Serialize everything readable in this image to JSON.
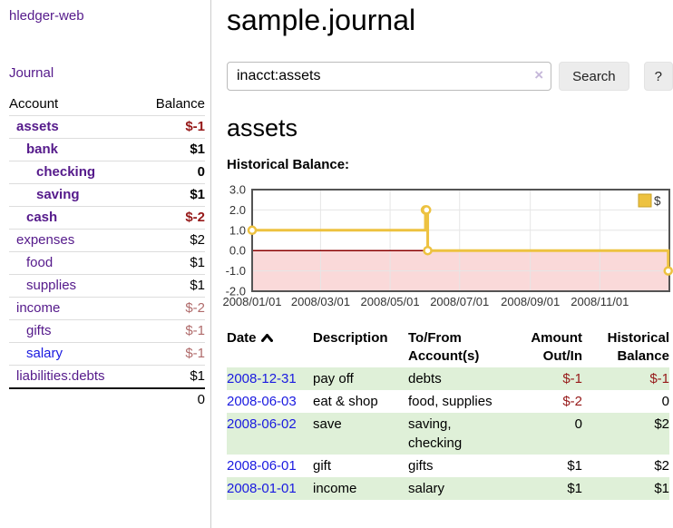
{
  "brand": "hledger-web",
  "nav": {
    "journal": "Journal"
  },
  "sidebar_accounts": {
    "header": {
      "account": "Account",
      "balance": "Balance"
    },
    "rows": [
      {
        "account": "assets",
        "balance": "$-1",
        "depth": 1,
        "current": true,
        "balance_class": "neg"
      },
      {
        "account": "bank",
        "balance": "$1",
        "depth": 2,
        "current": true,
        "balance_class": "pos"
      },
      {
        "account": "checking",
        "balance": "0",
        "depth": 3,
        "current": true,
        "balance_class": "pos"
      },
      {
        "account": "saving",
        "balance": "$1",
        "depth": 3,
        "current": true,
        "balance_class": "pos"
      },
      {
        "account": "cash",
        "balance": "$-2",
        "depth": 2,
        "current": true,
        "balance_class": "neg"
      },
      {
        "account": "expenses",
        "balance": "$2",
        "depth": 1,
        "current": false,
        "balance_class": "pos"
      },
      {
        "account": "food",
        "balance": "$1",
        "depth": 2,
        "current": false,
        "balance_class": "pos"
      },
      {
        "account": "supplies",
        "balance": "$1",
        "depth": 2,
        "current": false,
        "balance_class": "pos"
      },
      {
        "account": "income",
        "balance": "$-2",
        "depth": 1,
        "current": false,
        "balance_class": "neg-muted"
      },
      {
        "account": "gifts",
        "balance": "$-1",
        "depth": 2,
        "current": false,
        "balance_class": "neg-muted"
      },
      {
        "account": "salary",
        "balance": "$-1",
        "depth": 2,
        "current": false,
        "balance_class": "neg-muted",
        "link_class": "blue"
      },
      {
        "account": "liabilities:debts",
        "balance": "$1",
        "depth": 1,
        "current": false,
        "balance_class": "pos"
      }
    ],
    "total": "0"
  },
  "main": {
    "title": "sample.journal",
    "search": {
      "value": "inacct:assets",
      "clear": "×",
      "search_button": "Search",
      "help_button": "?"
    },
    "account_heading": "assets",
    "chart_heading": "Historical Balance:"
  },
  "chart_data": {
    "type": "line",
    "style": "step",
    "title": "Historical Balance:",
    "series": [
      {
        "name": "$",
        "color": "#edc240",
        "points": [
          {
            "date": "2008-01-01",
            "value": 1
          },
          {
            "date": "2008-06-01",
            "value": 2
          },
          {
            "date": "2008-06-02",
            "value": 2
          },
          {
            "date": "2008-06-03",
            "value": 0
          },
          {
            "date": "2008-12-31",
            "value": -1
          }
        ]
      }
    ],
    "xlim": [
      "2008-01-01",
      "2009-01-01"
    ],
    "ylim": [
      -2,
      3
    ],
    "y_ticks": [
      {
        "value": 3,
        "label": "3.0"
      },
      {
        "value": 2,
        "label": "2.0"
      },
      {
        "value": 1,
        "label": "1.0"
      },
      {
        "value": 0,
        "label": "0.0"
      },
      {
        "value": -1,
        "label": "-1.0"
      },
      {
        "value": -2,
        "label": "-2.0"
      }
    ],
    "x_ticks": [
      {
        "date": "2008-01-01",
        "label": "2008/01/01"
      },
      {
        "date": "2008-03-01",
        "label": "2008/03/01"
      },
      {
        "date": "2008-05-01",
        "label": "2008/05/01"
      },
      {
        "date": "2008-07-01",
        "label": "2008/07/01"
      },
      {
        "date": "2008-09-01",
        "label": "2008/09/01"
      },
      {
        "date": "2008-11-01",
        "label": "2008/11/01"
      }
    ],
    "legend": {
      "label": "$",
      "position": "top-right"
    },
    "grid": true,
    "border_color": "#545454",
    "grid_color": "#e6e6e6",
    "zero_line_color": "#8b0000",
    "negative_region_color": "#fad9d9",
    "marker_fill": "#ffffff"
  },
  "register": {
    "columns": [
      {
        "label": "Date",
        "sort": "ascending",
        "align": "left"
      },
      {
        "label": "Description",
        "align": "left"
      },
      {
        "label": "To/From Account(s)",
        "align": "left"
      },
      {
        "label": "Amount Out/In",
        "align": "right"
      },
      {
        "label": "Historical Balance",
        "align": "right"
      }
    ],
    "rows": [
      {
        "date": "2008-12-31",
        "description": "pay off",
        "accounts": "debts",
        "amount": "$-1",
        "amount_class": "neg",
        "balance": "$-1",
        "balance_class": "neg"
      },
      {
        "date": "2008-06-03",
        "description": "eat & shop",
        "accounts": "food, supplies",
        "amount": "$-2",
        "amount_class": "neg",
        "balance": "0",
        "balance_class": "pos"
      },
      {
        "date": "2008-06-02",
        "description": "save",
        "accounts": "saving, checking",
        "amount": "0",
        "amount_class": "pos",
        "balance": "$2",
        "balance_class": "pos"
      },
      {
        "date": "2008-06-01",
        "description": "gift",
        "accounts": "gifts",
        "amount": "$1",
        "amount_class": "pos",
        "balance": "$2",
        "balance_class": "pos"
      },
      {
        "date": "2008-01-01",
        "description": "income",
        "accounts": "salary",
        "amount": "$1",
        "amount_class": "pos",
        "balance": "$1",
        "balance_class": "pos"
      }
    ]
  },
  "colors": {
    "link_purple": "#551a8b",
    "link_blue": "#1a1ae0",
    "negative": "#961919",
    "negative_muted": "#b06b6b",
    "row_stripe_green": "#dff0d8",
    "button_bg": "#ececec"
  }
}
